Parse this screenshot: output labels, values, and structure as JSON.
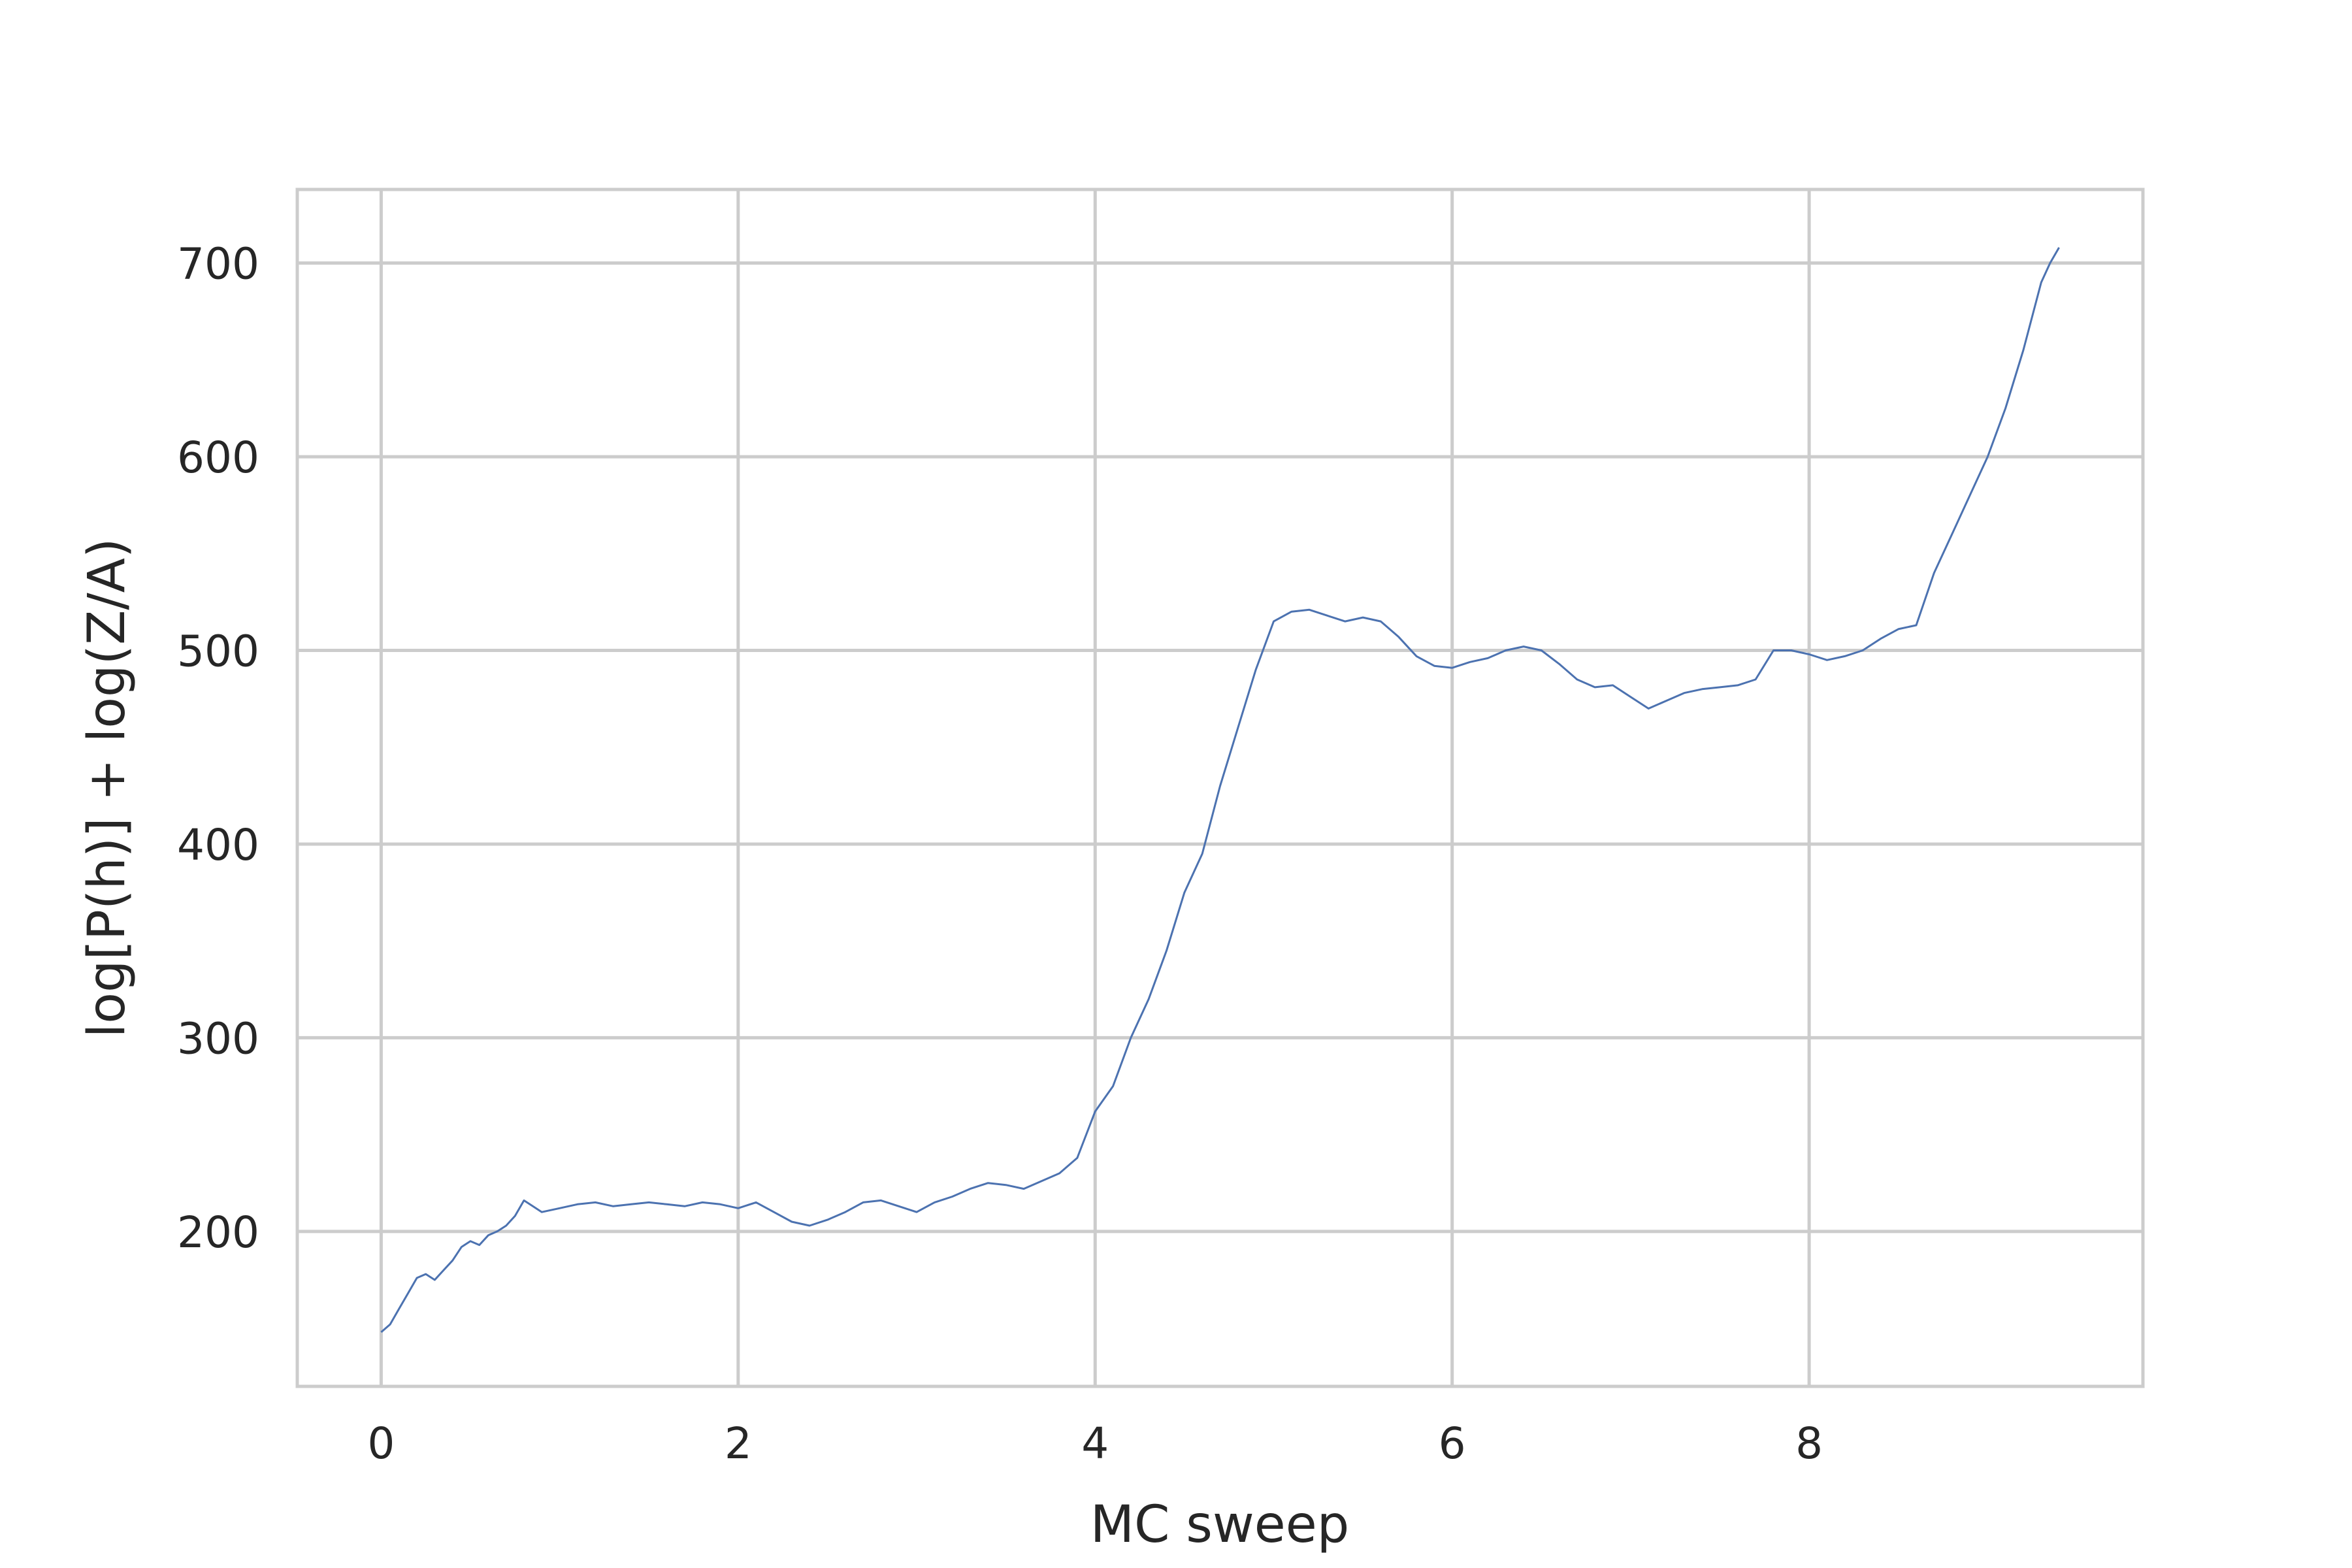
{
  "chart_data": {
    "type": "line",
    "title": "",
    "xlabel": "MC sweep",
    "ylabel": "log[P(h)] + log(Z/A)",
    "xlim": [
      -0.47,
      9.87
    ],
    "ylim": [
      120,
      738
    ],
    "xticks": [
      0,
      2,
      4,
      6,
      8
    ],
    "yticks": [
      200,
      300,
      400,
      500,
      600,
      700
    ],
    "xtick_labels": [
      "0",
      "2",
      "4",
      "6",
      "8"
    ],
    "ytick_labels": [
      "200",
      "300",
      "400",
      "500",
      "600",
      "700"
    ],
    "grid": true,
    "legend": "none",
    "colors": {
      "series": "#4c72b0",
      "grid": "#cccccc",
      "text": "#262626"
    },
    "series": [
      {
        "color": "#4c72b0",
        "x": [
          0.0,
          0.05,
          0.1,
          0.15,
          0.2,
          0.25,
          0.3,
          0.35,
          0.4,
          0.45,
          0.5,
          0.55,
          0.6,
          0.65,
          0.7,
          0.75,
          0.8,
          0.85,
          0.9,
          1.0,
          1.1,
          1.2,
          1.3,
          1.4,
          1.5,
          1.6,
          1.7,
          1.8,
          1.9,
          2.0,
          2.1,
          2.2,
          2.3,
          2.4,
          2.5,
          2.6,
          2.7,
          2.8,
          2.9,
          3.0,
          3.1,
          3.2,
          3.3,
          3.4,
          3.5,
          3.6,
          3.7,
          3.8,
          3.9,
          4.0,
          4.1,
          4.2,
          4.3,
          4.4,
          4.5,
          4.6,
          4.7,
          4.8,
          4.9,
          5.0,
          5.1,
          5.2,
          5.3,
          5.4,
          5.5,
          5.6,
          5.7,
          5.8,
          5.9,
          6.0,
          6.1,
          6.2,
          6.3,
          6.4,
          6.5,
          6.6,
          6.7,
          6.8,
          6.9,
          7.0,
          7.1,
          7.2,
          7.3,
          7.4,
          7.5,
          7.6,
          7.7,
          7.8,
          7.9,
          8.0,
          8.1,
          8.2,
          8.3,
          8.4,
          8.5,
          8.6,
          8.7,
          8.8,
          8.9,
          9.0,
          9.1,
          9.2,
          9.3,
          9.35,
          9.4
        ],
        "y": [
          148,
          152,
          160,
          168,
          176,
          178,
          175,
          180,
          185,
          192,
          195,
          193,
          198,
          200,
          203,
          208,
          216,
          213,
          210,
          212,
          214,
          215,
          213,
          214,
          215,
          214,
          213,
          215,
          214,
          212,
          215,
          210,
          205,
          203,
          206,
          210,
          215,
          216,
          213,
          210,
          215,
          218,
          222,
          225,
          224,
          222,
          226,
          230,
          238,
          262,
          275,
          300,
          320,
          345,
          375,
          395,
          430,
          460,
          490,
          515,
          520,
          521,
          518,
          515,
          517,
          515,
          507,
          497,
          492,
          491,
          494,
          496,
          500,
          502,
          500,
          493,
          485,
          481,
          482,
          476,
          470,
          474,
          478,
          480,
          481,
          482,
          485,
          500,
          500,
          498,
          495,
          497,
          500,
          506,
          511,
          513,
          540,
          560,
          580,
          600,
          625,
          655,
          690,
          700,
          708
        ]
      }
    ]
  }
}
